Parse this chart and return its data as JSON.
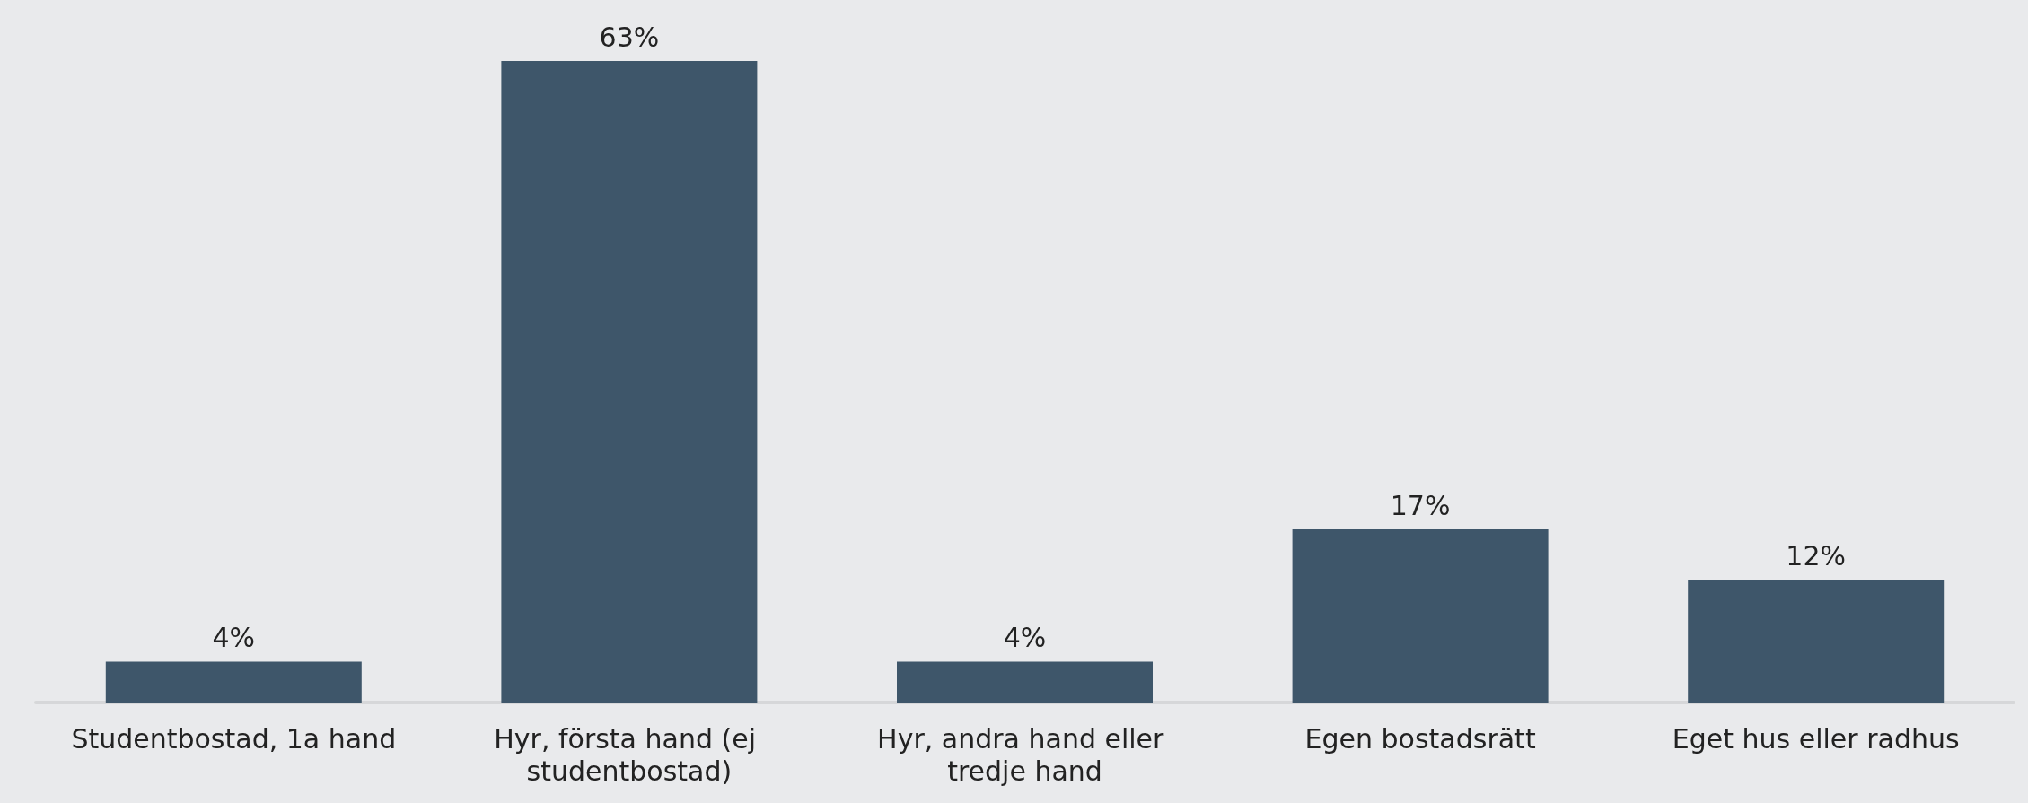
{
  "chart_data": {
    "type": "bar",
    "categories": [
      "Studentbostad, 1a hand",
      "Hyr, första hand (ej studentbostad)",
      "Hyr, andra hand eller tredje hand",
      "Egen bostadsrätt",
      "Eget hus eller radhus"
    ],
    "values": [
      4,
      63,
      4,
      17,
      12
    ],
    "color": "#3e566a",
    "data_labels": true,
    "value_labels": [
      "4%",
      "63%",
      "4%",
      "17%",
      "12%"
    ]
  }
}
